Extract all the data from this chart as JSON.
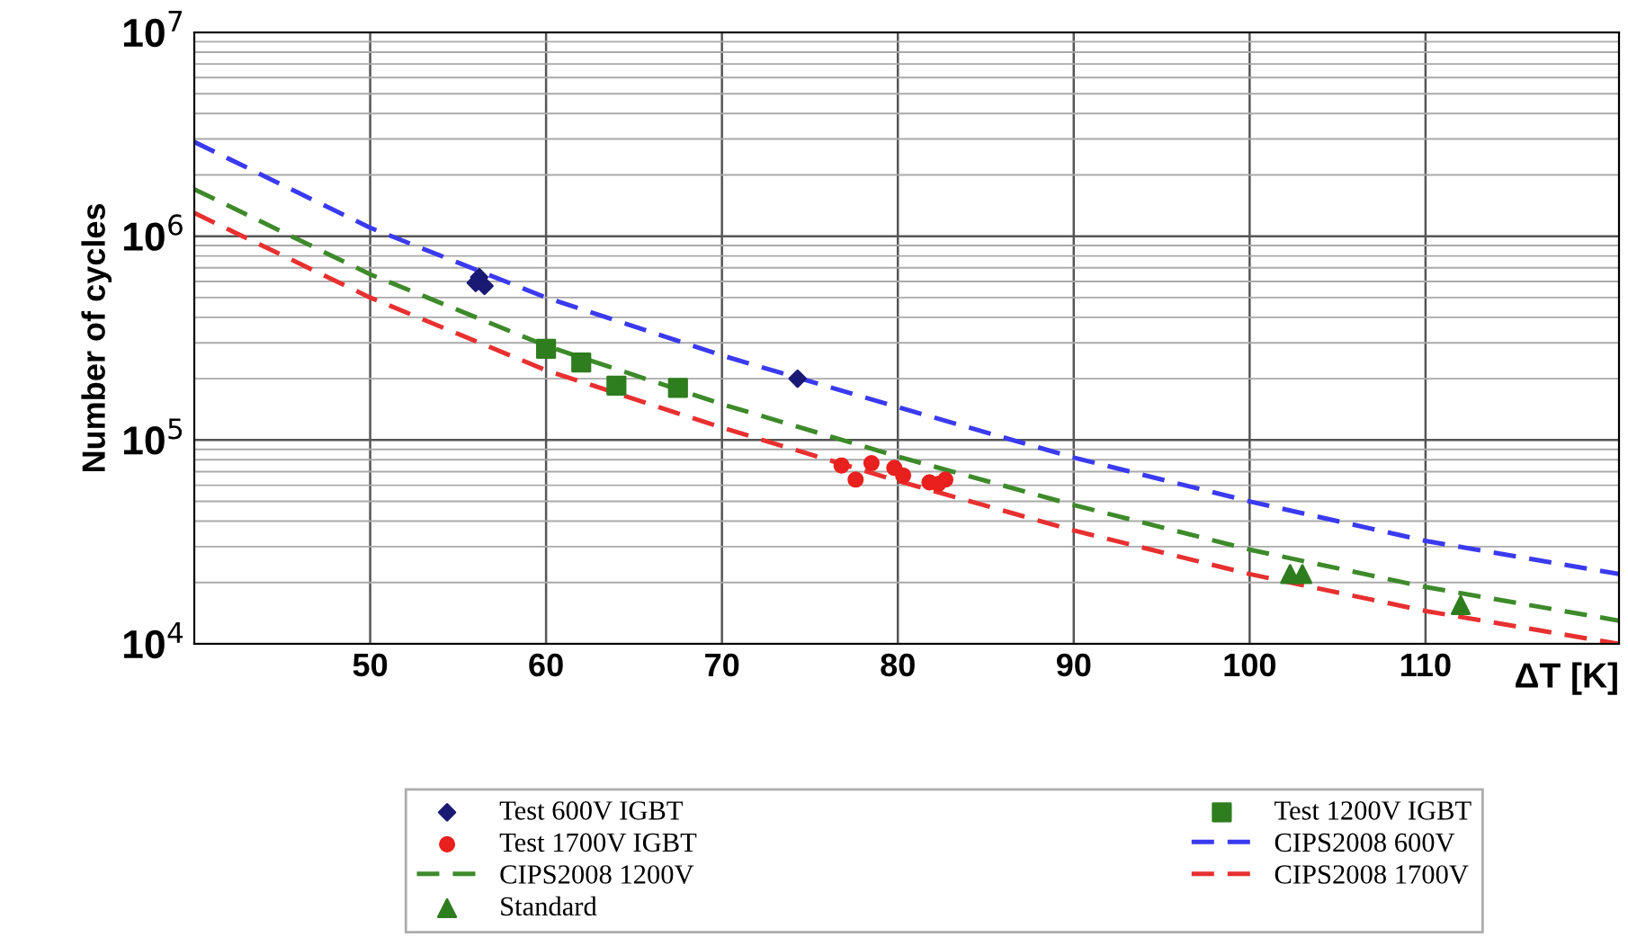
{
  "chart_data": {
    "type": "scatter",
    "ylabel": "Number of cycles",
    "xlabel": "ΔT [K]",
    "log": "y",
    "grid": true,
    "legend": "bottom",
    "xlim": [
      40,
      121
    ],
    "xticks": [
      50,
      60,
      70,
      80,
      90,
      100,
      110
    ],
    "ylim": [
      10000,
      10000000
    ],
    "yticks": [
      {
        "value": 10000,
        "label": "10$^{4}$"
      },
      {
        "value": 100000,
        "label": "10$^{5}$"
      },
      {
        "value": 1000000,
        "label": "10$^{6}$"
      },
      {
        "value": 10000000,
        "label": "10$^{7}$"
      }
    ],
    "series": [
      {
        "name": "Test 600V IGBT",
        "marker": "diamond",
        "color": "#1a1a75",
        "x": [
          56.0,
          56.2,
          56.5,
          74.3
        ],
        "values": [
          590000,
          630000,
          570000,
          200000
        ]
      },
      {
        "name": "Test 1700V IGBT",
        "marker": "circle",
        "color": "#e8201e",
        "x": [
          76.8,
          77.6,
          78.5,
          79.8,
          80.3,
          81.8,
          82.3,
          82.7
        ],
        "values": [
          75000,
          64000,
          77000,
          73000,
          67000,
          62000,
          61000,
          64000
        ]
      },
      {
        "name": "CIPS2008 1200V",
        "type": "line",
        "line_style": "dashed",
        "color": "#3d8a2a",
        "x": [
          40,
          50,
          60,
          70,
          80,
          90,
          100,
          110,
          121
        ],
        "values": [
          1700000,
          650000,
          290000,
          150000,
          83000,
          48000,
          29000,
          19000,
          13000
        ]
      },
      {
        "name": "Standard",
        "marker": "triangle",
        "color": "#2e7d1e",
        "x": [
          102.3,
          103.0,
          112.0
        ],
        "values": [
          22000,
          22000,
          15500
        ]
      },
      {
        "name": "Test 1200V IGBT",
        "marker": "square",
        "color": "#2e7d1e",
        "x": [
          60.0,
          62.0,
          64.0,
          67.5
        ],
        "values": [
          280000,
          240000,
          185000,
          180000
        ]
      },
      {
        "name": "CIPS2008 600V",
        "type": "line",
        "line_style": "dashed",
        "color": "#3a3af0",
        "x": [
          40,
          50,
          60,
          70,
          80,
          90,
          100,
          110,
          121
        ],
        "values": [
          2900000,
          1100000,
          500000,
          260000,
          145000,
          82000,
          50000,
          32000,
          22000
        ]
      },
      {
        "name": "CIPS2008 1700V",
        "type": "line",
        "line_style": "dashed",
        "color": "#e83030",
        "x": [
          40,
          50,
          60,
          70,
          80,
          90,
          100,
          110,
          121
        ],
        "values": [
          1300000,
          500000,
          220000,
          115000,
          63000,
          36000,
          22000,
          14500,
          10000
        ]
      }
    ]
  }
}
